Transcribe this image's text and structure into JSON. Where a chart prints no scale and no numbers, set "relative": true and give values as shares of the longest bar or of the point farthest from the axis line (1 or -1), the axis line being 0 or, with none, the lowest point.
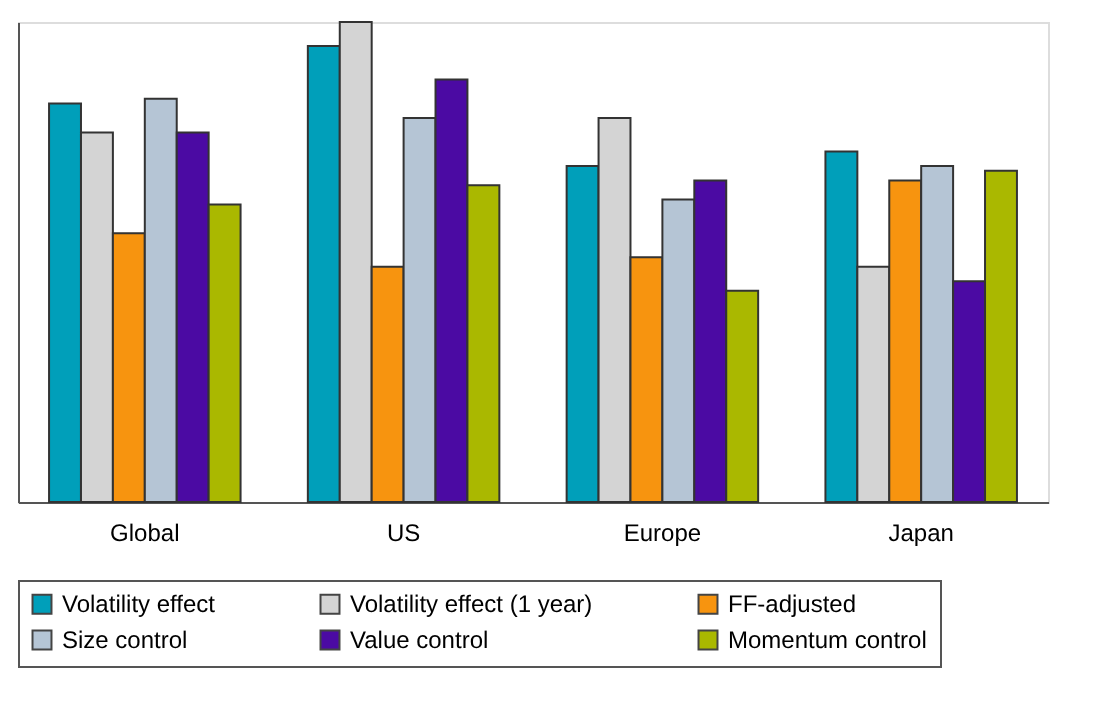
{
  "chart_data": {
    "type": "bar",
    "relative": true,
    "categories": [
      "Global",
      "US",
      "Europe",
      "Japan"
    ],
    "series": [
      {
        "name": "Volatility effect",
        "color": "#009fba",
        "values": [
          0.83,
          0.95,
          0.7,
          0.73
        ]
      },
      {
        "name": "Volatility effect (1 year)",
        "color": "#d4d4d4",
        "values": [
          0.77,
          1,
          0.8,
          0.49
        ]
      },
      {
        "name": "FF-adjusted",
        "color": "#f7940f",
        "values": [
          0.56,
          0.49,
          0.51,
          0.67
        ]
      },
      {
        "name": "Size control",
        "color": "#b5c5d5",
        "values": [
          0.84,
          0.8,
          0.63,
          0.7
        ]
      },
      {
        "name": "Value control",
        "color": "#4b0aa3",
        "values": [
          0.77,
          0.88,
          0.67,
          0.46
        ]
      },
      {
        "name": "Momentum control",
        "color": "#aab800",
        "values": [
          0.62,
          0.66,
          0.44,
          0.69
        ]
      }
    ],
    "legend": "bottom",
    "grid": false
  }
}
